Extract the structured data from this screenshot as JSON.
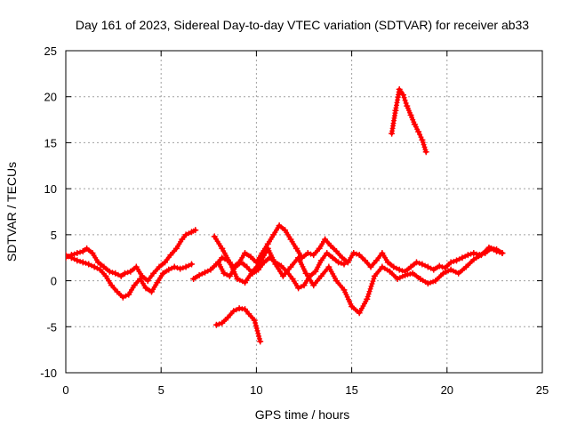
{
  "chart_data": {
    "type": "scatter",
    "title": "Day 161 of 2023, Sidereal Day-to-day VTEC variation (SDTVAR) for receiver ab33",
    "xlabel": "GPS time / hours",
    "ylabel": "SDTVAR / TECUs",
    "xlim": [
      0,
      25
    ],
    "ylim": [
      -10,
      25
    ],
    "xticks": [
      0,
      5,
      10,
      15,
      20,
      25
    ],
    "yticks": [
      -10,
      -5,
      0,
      5,
      10,
      15,
      20,
      25
    ],
    "grid": true,
    "marker": "+",
    "color": "#ff0000",
    "series": [
      {
        "name": "main-trace-a",
        "x": [
          0.0,
          0.3,
          0.6,
          0.9,
          1.1,
          1.4,
          1.7,
          2.0,
          2.3,
          2.6,
          2.9,
          3.1,
          3.4,
          3.7,
          4.0,
          4.3,
          4.6,
          4.9,
          5.2,
          5.5,
          5.8,
          6.1,
          6.3,
          6.6,
          6.8
        ],
        "y": [
          2.5,
          2.8,
          3.0,
          3.2,
          3.5,
          3.0,
          2.0,
          1.5,
          1.0,
          0.8,
          0.5,
          0.8,
          1.0,
          1.5,
          0.5,
          0.0,
          0.8,
          1.5,
          2.0,
          2.8,
          3.5,
          4.5,
          5.0,
          5.3,
          5.5
        ]
      },
      {
        "name": "main-trace-b",
        "x": [
          0.0,
          0.3,
          0.6,
          0.9,
          1.2,
          1.5,
          1.8,
          2.1,
          2.4,
          2.7,
          3.0,
          3.3,
          3.6,
          3.9,
          4.2,
          4.5,
          4.8,
          5.1,
          5.4,
          5.7,
          6.0,
          6.3,
          6.6
        ],
        "y": [
          2.8,
          2.5,
          2.2,
          2.0,
          1.8,
          1.5,
          1.2,
          0.5,
          -0.5,
          -1.2,
          -1.8,
          -1.5,
          -0.5,
          0.2,
          -0.8,
          -1.2,
          -0.2,
          0.8,
          1.2,
          1.5,
          1.3,
          1.5,
          1.8
        ]
      },
      {
        "name": "main-trace-c",
        "x": [
          6.7,
          7.0,
          7.3,
          7.6,
          7.9,
          8.2,
          8.5,
          8.8,
          9.1,
          9.4,
          9.7,
          10.0,
          10.3,
          10.6,
          10.9,
          11.2,
          11.5,
          11.8,
          12.1,
          12.4,
          12.7,
          13.0,
          13.3,
          13.6,
          13.9,
          14.2,
          14.5,
          14.8,
          15.1,
          15.4,
          15.7,
          16.0,
          16.3,
          16.6,
          16.9,
          17.2,
          17.5,
          17.8,
          18.1,
          18.4,
          18.7,
          19.0,
          19.3,
          19.6,
          19.9,
          20.2,
          20.5,
          20.8,
          21.1,
          21.4,
          21.7,
          22.0,
          22.3,
          22.6,
          22.9
        ],
        "y": [
          0.2,
          0.6,
          0.9,
          1.2,
          1.8,
          2.5,
          2.2,
          1.5,
          2.0,
          3.0,
          2.6,
          2.0,
          3.0,
          4.0,
          5.0,
          6.0,
          5.5,
          4.5,
          3.5,
          2.5,
          3.0,
          2.8,
          3.5,
          4.5,
          3.8,
          3.2,
          2.5,
          2.0,
          3.0,
          2.8,
          2.2,
          1.5,
          2.2,
          3.0,
          2.0,
          1.5,
          1.2,
          1.0,
          1.5,
          2.0,
          1.8,
          1.5,
          1.2,
          1.6,
          1.4,
          2.0,
          2.2,
          2.5,
          2.8,
          3.0,
          2.8,
          3.0,
          3.5,
          3.2,
          3.0
        ]
      },
      {
        "name": "main-trace-d",
        "x": [
          7.8,
          8.2,
          8.6,
          9.0,
          9.4,
          9.8,
          10.2,
          10.6,
          11.0,
          11.4,
          11.8,
          12.2,
          12.6,
          13.0,
          13.4,
          13.8,
          14.2,
          14.6,
          15.0,
          15.4,
          15.8,
          16.2,
          16.6,
          17.0,
          17.4,
          17.8,
          18.2,
          18.6,
          19.0,
          19.4,
          19.8,
          20.2,
          20.6,
          21.0,
          21.4,
          21.8,
          22.2,
          22.6,
          22.9
        ],
        "y": [
          4.8,
          3.5,
          2.0,
          0.2,
          -0.2,
          1.0,
          2.0,
          3.5,
          1.8,
          0.5,
          1.5,
          2.5,
          0.8,
          -0.5,
          0.5,
          1.5,
          0.0,
          -1.0,
          -2.8,
          -3.5,
          -2.0,
          0.5,
          1.5,
          1.0,
          0.2,
          0.6,
          0.8,
          0.2,
          -0.3,
          0.0,
          0.8,
          1.2,
          0.8,
          1.5,
          2.3,
          2.8,
          3.6,
          3.4,
          3.0
        ]
      },
      {
        "name": "main-trace-e",
        "x": [
          8.0,
          8.3,
          8.6,
          8.9,
          9.2,
          9.5,
          9.8,
          10.1,
          10.4,
          10.7,
          11.0,
          11.3,
          11.6,
          11.9,
          12.2,
          12.5,
          12.8,
          13.1,
          13.4,
          13.7,
          14.0,
          14.3,
          14.6
        ],
        "y": [
          2.0,
          0.8,
          0.5,
          1.5,
          2.0,
          1.5,
          0.8,
          1.2,
          2.0,
          2.5,
          2.0,
          1.6,
          1.0,
          0.2,
          -0.8,
          -0.5,
          0.5,
          1.0,
          2.2,
          3.0,
          2.5,
          2.0,
          1.8
        ]
      },
      {
        "name": "drop-trace",
        "x": [
          7.9,
          8.2,
          8.5,
          8.8,
          9.1,
          9.4,
          9.6,
          9.9,
          10.2
        ],
        "y": [
          -4.8,
          -4.6,
          -4.0,
          -3.3,
          -3.0,
          -3.1,
          -3.6,
          -4.3,
          -6.6
        ]
      },
      {
        "name": "high-trace",
        "x": [
          17.1,
          17.3,
          17.5,
          17.7,
          17.9,
          18.1,
          18.3,
          18.5,
          18.7,
          18.9
        ],
        "y": [
          16.0,
          18.5,
          20.8,
          20.2,
          19.0,
          18.0,
          17.0,
          16.2,
          15.3,
          14.0
        ]
      }
    ]
  }
}
